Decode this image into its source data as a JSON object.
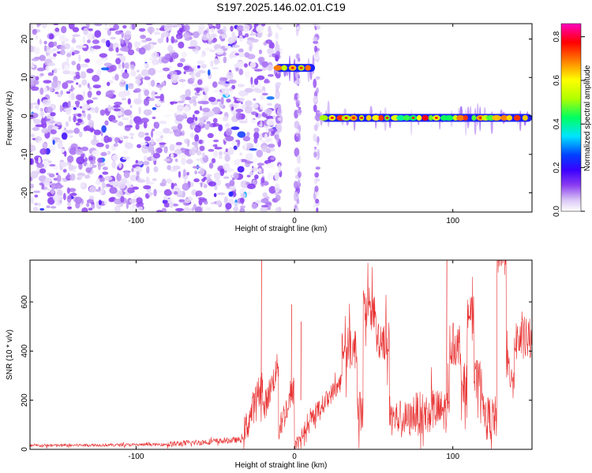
{
  "title": "S197.2025.146.02.01.C19",
  "chart_data": [
    {
      "type": "heatmap",
      "xlabel": "Height of straight line (km)",
      "ylabel": "Frequency (Hz)",
      "xlim": [
        -167,
        150
      ],
      "ylim": [
        -25,
        24
      ],
      "xticks": [
        -100,
        0,
        100
      ],
      "yticks": [
        -20,
        -10,
        0,
        10,
        20
      ],
      "colorbar": {
        "label": "Normalized spectral amplitude",
        "range": [
          0,
          0.86
        ],
        "ticks": [
          0.0,
          0.2,
          0.4,
          0.6,
          0.8
        ],
        "colormap": [
          "#ffffff",
          "#d9c6f5",
          "#8a3cf0",
          "#3a00ff",
          "#0040ff",
          "#00e5ff",
          "#00ff60",
          "#b0ff00",
          "#ffff00",
          "#ff8000",
          "#ff0000",
          "#ff00c0"
        ]
      },
      "features": [
        {
          "name": "noise",
          "x_range": [
            -167,
            -12
          ],
          "f_range": [
            -25,
            24
          ],
          "level": 0.06
        },
        {
          "name": "stripe",
          "x": -10,
          "f_range": [
            -25,
            24
          ],
          "level": 0.05
        },
        {
          "name": "stripe",
          "x": 2,
          "f_range": [
            -25,
            24
          ],
          "level": 0.05
        },
        {
          "name": "stripe",
          "x": 14,
          "f_range": [
            -25,
            24
          ],
          "level": 0.05
        },
        {
          "name": "tone",
          "x_range": [
            -12,
            13
          ],
          "f": 12.5,
          "level": 0.65
        },
        {
          "name": "tone",
          "x_range": [
            17,
            150
          ],
          "f": -0.5,
          "level": 0.7
        }
      ]
    },
    {
      "type": "line",
      "xlabel": "Height of straight line (km)",
      "ylabel": "SNR (10 * v/v)",
      "xlim": [
        -167,
        150
      ],
      "ylim": [
        0,
        770
      ],
      "xticks": [
        -100,
        0,
        100
      ],
      "yticks": [
        0,
        200,
        400,
        600
      ],
      "color": "#e83030",
      "segments": [
        {
          "x": [
            -167,
            -80
          ],
          "base": [
            15,
            20
          ],
          "noise": 12
        },
        {
          "x": [
            -80,
            -32
          ],
          "base": [
            20,
            40
          ],
          "noise": 25
        },
        {
          "x": [
            -32,
            -20
          ],
          "base": [
            60,
            280
          ],
          "noise": 140
        },
        {
          "x": [
            -20,
            -10
          ],
          "base": [
            150,
            350
          ],
          "noise": 120
        },
        {
          "x": [
            -10,
            0
          ],
          "base": [
            80,
            250
          ],
          "noise": 120
        },
        {
          "x": [
            0,
            10
          ],
          "base": [
            20,
            100
          ],
          "noise": 60
        },
        {
          "x": [
            10,
            30
          ],
          "base": [
            120,
            280
          ],
          "noise": 80
        },
        {
          "x": [
            30,
            60
          ],
          "base": [
            300,
            500
          ],
          "noise": 180
        },
        {
          "x": [
            60,
            75
          ],
          "base": [
            150,
            400
          ],
          "noise": 150
        },
        {
          "x": [
            75,
            150
          ],
          "base": [
            300,
            600
          ],
          "noise": 180
        }
      ],
      "peaks": [
        {
          "x": -21,
          "y": 770
        },
        {
          "x": -2,
          "y": 590
        },
        {
          "x": 4,
          "y": 520
        },
        {
          "x": 96,
          "y": 770
        }
      ]
    }
  ]
}
